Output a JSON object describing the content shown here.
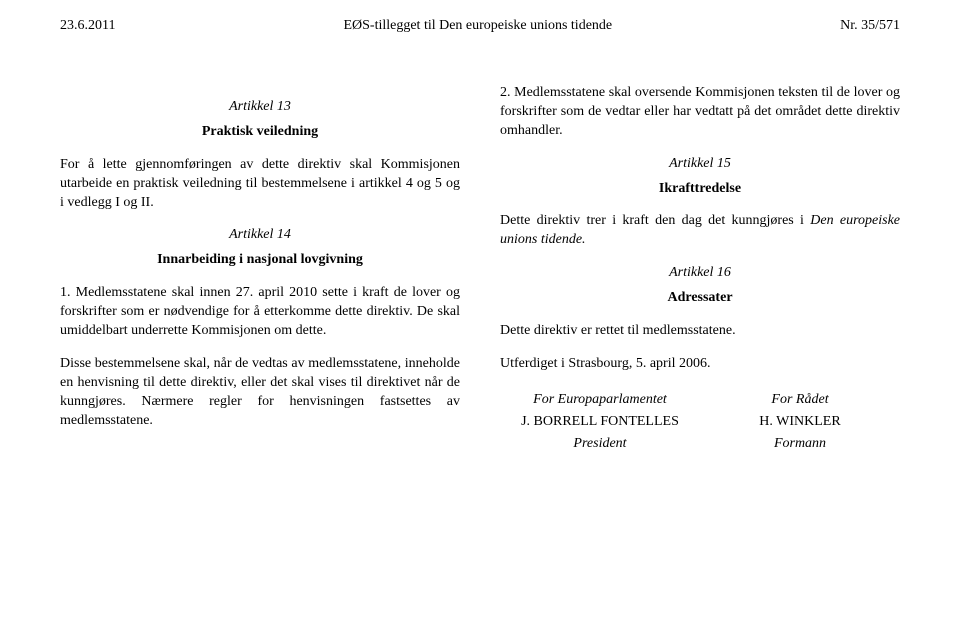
{
  "header": {
    "left": "23.6.2011",
    "center": "EØS-tillegget til Den europeiske unions tidende",
    "right": "Nr. 35/571"
  },
  "left_col": {
    "art13_heading": "Artikkel 13",
    "art13_sub": "Praktisk veiledning",
    "art13_para": "For å lette gjennomføringen av dette direktiv skal Kommisjonen utarbeide en praktisk veiledning til bestemmelsene i artikkel 4 og 5 og i vedlegg I og II.",
    "art14_heading": "Artikkel 14",
    "art14_sub": "Innarbeiding i nasjonal lovgivning",
    "art14_p1": "1.   Medlemsstatene skal innen 27. april 2010 sette i kraft de lover og forskrifter som er nødvendige for å etterkomme dette direktiv. De skal umiddelbart underrette Kommisjonen om dette.",
    "art14_p2": "Disse bestemmelsene skal, når de vedtas av medlemsstatene, inneholde en henvisning til dette direktiv, eller det skal vises til direktivet når de kunngjøres. Nærmere regler for henvisningen fastsettes av medlemsstatene."
  },
  "right_col": {
    "p2": "2.   Medlemsstatene skal oversende Kommisjonen teksten til de lover og forskrifter som de vedtar eller har vedtatt på det området dette direktiv omhandler.",
    "art15_heading": "Artikkel 15",
    "art15_sub": "Ikrafttredelse",
    "art15_para_pre": "Dette direktiv trer i kraft den dag det kunngjøres i ",
    "art15_para_it": "Den europeiske unions tidende.",
    "art16_heading": "Artikkel 16",
    "art16_sub": "Adressater",
    "art16_para": "Dette direktiv er rettet til medlemsstatene.",
    "done_at": "Utferdiget i Strasbourg, 5. april 2006.",
    "sig_left_for": "For Europaparlamentet",
    "sig_left_name": "J. BORRELL FONTELLES",
    "sig_left_role": "President",
    "sig_right_for": "For Rådet",
    "sig_right_name": "H. WINKLER",
    "sig_right_role": "Formann"
  }
}
